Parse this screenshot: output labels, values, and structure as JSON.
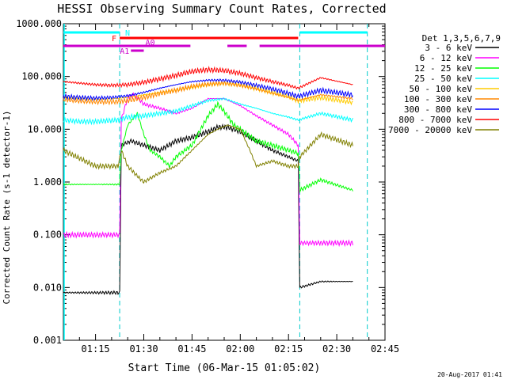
{
  "chart_data": {
    "type": "line",
    "title": "HESSI Observing Summary Count Rates, Corrected",
    "xlabel": "Start Time (06-Mar-15 01:05:02)",
    "ylabel": "Corrected Count Rate (s-1 detector-1)",
    "y_scale": "log",
    "ylim": [
      0.001,
      1000
    ],
    "xlim_minutes_after_01_00": [
      5,
      105
    ],
    "x_tick_labels": [
      "01:15",
      "01:30",
      "01:45",
      "02:00",
      "02:15",
      "02:30",
      "02:45"
    ],
    "x_tick_minutes": [
      15,
      30,
      45,
      60,
      75,
      90,
      105
    ],
    "y_tick_labels": [
      "0.001",
      "0.010",
      "0.100",
      "1.000",
      "10.000",
      "100.000",
      "1000.000"
    ],
    "y_tick_values": [
      0.001,
      0.01,
      0.1,
      1,
      10,
      100,
      1000
    ],
    "legend_title": "Det 1,3,5,6,7,9",
    "legend_position": "right",
    "timestamp": "20-Aug-2017 01:41",
    "series": [
      {
        "name": "3 - 6 keV",
        "color": "#000000",
        "x": [
          5,
          22.5,
          23,
          26,
          30,
          35,
          40,
          45,
          50,
          53,
          56,
          60,
          65,
          70,
          75,
          78,
          78.5,
          85,
          95
        ],
        "y": [
          0.008,
          0.008,
          5,
          6,
          5,
          4,
          6,
          7,
          9,
          11,
          11,
          9,
          6,
          4,
          3,
          2.5,
          0.01,
          0.013,
          0.013
        ]
      },
      {
        "name": "6 - 12 keV",
        "color": "#ff00ff",
        "x": [
          5,
          22.5,
          23,
          25,
          27,
          30,
          35,
          40,
          45,
          50,
          55,
          60,
          65,
          70,
          75,
          78,
          78.5,
          85,
          95
        ],
        "y": [
          0.1,
          0.1,
          15,
          40,
          45,
          30,
          25,
          20,
          25,
          38,
          38,
          28,
          18,
          12,
          8,
          5,
          0.07,
          0.07,
          0.07
        ]
      },
      {
        "name": "12 - 25 keV",
        "color": "#00ff00",
        "x": [
          5,
          22.5,
          23,
          25,
          28,
          30,
          32,
          35,
          38,
          40,
          45,
          50,
          53,
          55,
          58,
          60,
          65,
          70,
          75,
          78,
          78.5,
          85,
          95
        ],
        "y": [
          0.9,
          0.9,
          4,
          12,
          20,
          8,
          4,
          3,
          2,
          3,
          5,
          18,
          30,
          22,
          12,
          10,
          6,
          5,
          4,
          3.5,
          0.7,
          1.1,
          0.7
        ]
      },
      {
        "name": "25 - 50 keV",
        "color": "#00ffff",
        "x": [
          5,
          10,
          15,
          22,
          25,
          30,
          35,
          40,
          45,
          50,
          55,
          60,
          65,
          70,
          75,
          78,
          85,
          95
        ],
        "y": [
          15,
          14,
          14,
          15,
          17,
          18,
          20,
          22,
          28,
          35,
          38,
          30,
          25,
          20,
          17,
          15,
          20,
          15
        ]
      },
      {
        "name": "50 - 100 keV",
        "color": "#ffcc00",
        "x": [
          5,
          10,
          15,
          20,
          25,
          30,
          35,
          40,
          45,
          50,
          55,
          60,
          65,
          70,
          75,
          78,
          85,
          95
        ],
        "y": [
          40,
          38,
          37,
          38,
          40,
          45,
          50,
          55,
          62,
          70,
          75,
          70,
          60,
          50,
          42,
          35,
          40,
          32
        ]
      },
      {
        "name": "100 - 300 keV",
        "color": "#ff8800",
        "x": [
          5,
          10,
          15,
          20,
          25,
          30,
          35,
          40,
          45,
          50,
          55,
          60,
          65,
          70,
          75,
          78,
          85,
          95
        ],
        "y": [
          36,
          34,
          33,
          33,
          35,
          40,
          48,
          55,
          65,
          72,
          75,
          68,
          58,
          48,
          40,
          35,
          45,
          38
        ]
      },
      {
        "name": "300 - 800 keV",
        "color": "#0000ff",
        "x": [
          5,
          10,
          15,
          20,
          25,
          30,
          35,
          40,
          45,
          50,
          55,
          60,
          65,
          70,
          75,
          78,
          85,
          95
        ],
        "y": [
          42,
          40,
          39,
          40,
          43,
          50,
          60,
          70,
          80,
          85,
          85,
          78,
          68,
          58,
          48,
          42,
          55,
          45
        ]
      },
      {
        "name": "800 - 7000 keV",
        "color": "#ff0000",
        "x": [
          5,
          10,
          15,
          20,
          25,
          30,
          35,
          40,
          45,
          50,
          55,
          60,
          65,
          70,
          75,
          78,
          85,
          95
        ],
        "y": [
          80,
          75,
          70,
          68,
          70,
          78,
          90,
          105,
          125,
          135,
          130,
          115,
          95,
          80,
          68,
          60,
          95,
          70
        ]
      },
      {
        "name": "7000 - 20000 keV",
        "color": "#808000",
        "x": [
          5,
          15,
          22,
          23,
          25,
          28,
          30,
          35,
          40,
          45,
          50,
          53,
          56,
          60,
          63,
          65,
          70,
          75,
          78,
          78.5,
          85,
          95
        ],
        "y": [
          4,
          2,
          2,
          4,
          2,
          1.3,
          1,
          1.5,
          2,
          4,
          8,
          10,
          12,
          10,
          4,
          2,
          2.5,
          2,
          2,
          3,
          8,
          5
        ]
      }
    ],
    "annotations": {
      "vertical_markers_minutes": [
        22.5,
        78.5,
        99.5
      ],
      "state_bars": [
        {
          "label": "N",
          "color": "#00ffff",
          "spans": [
            [
              5,
              22.5
            ],
            [
              78.5,
              99.5
            ]
          ]
        },
        {
          "label": "F",
          "color": "#ff0000",
          "spans": [
            [
              22.5,
              78
            ]
          ]
        },
        {
          "label": "A1",
          "color": "#cc00cc",
          "spans": [
            [
              26,
              30
            ]
          ]
        },
        {
          "label": "A0",
          "color": "#cc00cc",
          "spans": [
            [
              5,
              44.5
            ],
            [
              56,
              62
            ],
            [
              66,
              105
            ]
          ]
        }
      ]
    }
  }
}
